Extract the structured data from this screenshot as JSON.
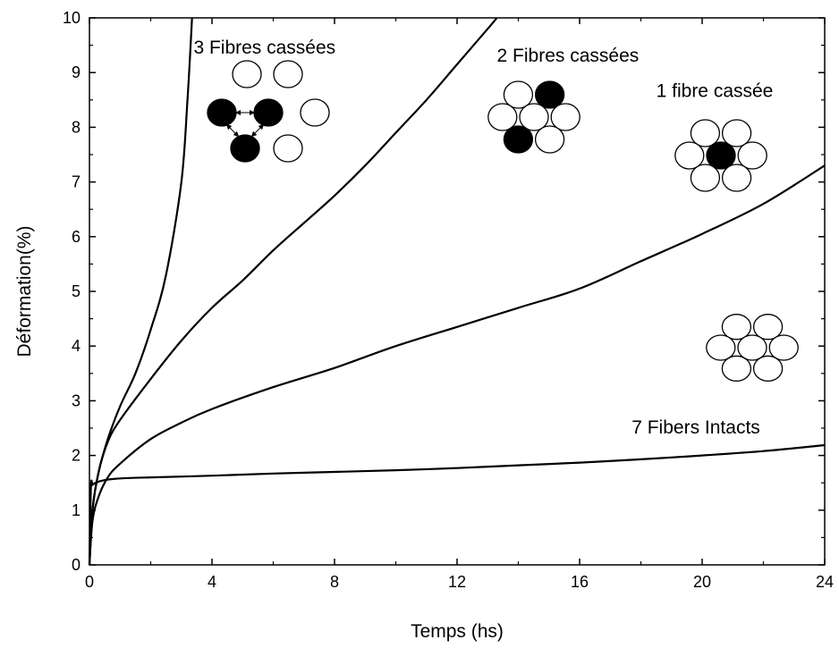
{
  "chart_data": {
    "type": "line",
    "title": "",
    "xlabel": "Temps (hs)",
    "ylabel": "Déformation(%)",
    "xlim": [
      0,
      24
    ],
    "ylim": [
      0,
      10
    ],
    "xticks": [
      0,
      4,
      8,
      12,
      16,
      20,
      24
    ],
    "yticks": [
      0,
      1,
      2,
      3,
      4,
      5,
      6,
      7,
      8,
      9,
      10
    ],
    "grid": false,
    "line_color": "#000000",
    "series": [
      {
        "x": [
          0,
          0.05,
          0.1,
          0.2,
          0.5,
          1,
          2,
          4,
          6,
          8,
          10,
          12,
          14,
          16,
          18,
          20,
          22,
          24
        ],
        "values": [
          0,
          1.43,
          1.46,
          1.5,
          1.55,
          1.58,
          1.6,
          1.63,
          1.67,
          1.7,
          1.73,
          1.77,
          1.82,
          1.87,
          1.93,
          2.0,
          2.08,
          2.19
        ]
      },
      {
        "x": [
          0,
          0.1,
          0.3,
          0.6,
          1,
          2,
          3,
          4,
          6,
          8,
          10,
          12,
          14,
          16,
          18,
          20,
          22,
          24
        ],
        "values": [
          0,
          0.8,
          1.25,
          1.6,
          1.85,
          2.3,
          2.6,
          2.85,
          3.25,
          3.6,
          4.0,
          4.35,
          4.7,
          5.05,
          5.55,
          6.05,
          6.6,
          7.3
        ]
      },
      {
        "x": [
          0,
          0.1,
          0.3,
          0.6,
          1,
          2,
          3,
          4,
          5,
          6,
          7,
          8,
          9,
          10,
          11,
          12,
          13,
          13.3
        ],
        "values": [
          0,
          1.0,
          1.7,
          2.25,
          2.65,
          3.4,
          4.1,
          4.7,
          5.2,
          5.75,
          6.25,
          6.75,
          7.3,
          7.9,
          8.5,
          9.15,
          9.8,
          10.0
        ]
      },
      {
        "x": [
          0,
          0.1,
          0.3,
          0.6,
          1,
          1.5,
          2,
          2.5,
          3,
          3.2,
          3.35
        ],
        "values": [
          0,
          1.0,
          1.7,
          2.3,
          2.9,
          3.5,
          4.3,
          5.3,
          7.0,
          8.5,
          10.0
        ]
      }
    ],
    "annotations": [
      {
        "text": "3 Fibres cassées",
        "x": 3.4,
        "y": 9.35,
        "broken": 3
      },
      {
        "text": "2 Fibres cassées",
        "x": 13.3,
        "y": 9.2,
        "broken": 2
      },
      {
        "text": "1 fibre cassée",
        "x": 18.5,
        "y": 8.55,
        "broken": 1
      },
      {
        "text": "7 Fibers Intacts",
        "x": 17.7,
        "y": 2.4,
        "broken": 0
      }
    ]
  }
}
